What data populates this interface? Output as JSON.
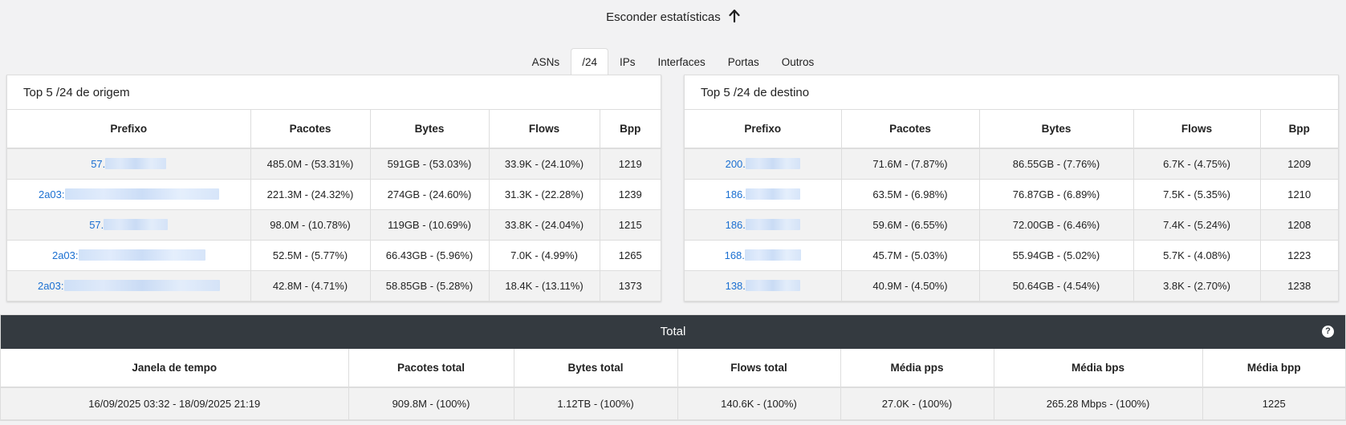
{
  "toggle": {
    "label": "Esconder estatísticas"
  },
  "tabs": [
    {
      "label": "ASNs",
      "active": false
    },
    {
      "label": "/24",
      "active": true
    },
    {
      "label": "IPs",
      "active": false
    },
    {
      "label": "Interfaces",
      "active": false
    },
    {
      "label": "Portas",
      "active": false
    },
    {
      "label": "Outros",
      "active": false
    }
  ],
  "origin": {
    "title": "Top 5 /24 de origem",
    "headers": [
      "Prefixo",
      "Pacotes",
      "Bytes",
      "Flows",
      "Bpp"
    ],
    "rows": [
      {
        "prefix": "57.",
        "pacotes": "485.0M - (53.31%)",
        "bytes": "591GB - (53.03%)",
        "flows": "33.9K - (24.10%)",
        "bpp": "1219"
      },
      {
        "prefix": "2a03:",
        "pacotes": "221.3M - (24.32%)",
        "bytes": "274GB - (24.60%)",
        "flows": "31.3K - (22.28%)",
        "bpp": "1239"
      },
      {
        "prefix": "57.",
        "pacotes": "98.0M - (10.78%)",
        "bytes": "119GB - (10.69%)",
        "flows": "33.8K - (24.04%)",
        "bpp": "1215"
      },
      {
        "prefix": "2a03:",
        "pacotes": "52.5M - (5.77%)",
        "bytes": "66.43GB - (5.96%)",
        "flows": "7.0K - (4.99%)",
        "bpp": "1265"
      },
      {
        "prefix": "2a03:",
        "pacotes": "42.8M - (4.71%)",
        "bytes": "58.85GB - (5.28%)",
        "flows": "18.4K - (13.11%)",
        "bpp": "1373"
      }
    ]
  },
  "destination": {
    "title": "Top 5 /24 de destino",
    "headers": [
      "Prefixo",
      "Pacotes",
      "Bytes",
      "Flows",
      "Bpp"
    ],
    "rows": [
      {
        "prefix": "200.",
        "pacotes": "71.6M - (7.87%)",
        "bytes": "86.55GB - (7.76%)",
        "flows": "6.7K - (4.75%)",
        "bpp": "1209"
      },
      {
        "prefix": "186.",
        "pacotes": "63.5M - (6.98%)",
        "bytes": "76.87GB - (6.89%)",
        "flows": "7.5K - (5.35%)",
        "bpp": "1210"
      },
      {
        "prefix": "186.",
        "pacotes": "59.6M - (6.55%)",
        "bytes": "72.00GB - (6.46%)",
        "flows": "7.4K - (5.24%)",
        "bpp": "1208"
      },
      {
        "prefix": "168.",
        "pacotes": "45.7M - (5.03%)",
        "bytes": "55.94GB - (5.02%)",
        "flows": "5.7K - (4.08%)",
        "bpp": "1223"
      },
      {
        "prefix": "138.",
        "pacotes": "40.9M - (4.50%)",
        "bytes": "50.64GB - (4.54%)",
        "flows": "3.8K - (2.70%)",
        "bpp": "1238"
      }
    ]
  },
  "total": {
    "title": "Total",
    "headers": [
      "Janela de tempo",
      "Pacotes total",
      "Bytes total",
      "Flows total",
      "Média pps",
      "Média bps",
      "Média bpp"
    ],
    "row": [
      "16/09/2025 03:32 - 18/09/2025 21:19",
      "909.8M - (100%)",
      "1.12TB - (100%)",
      "140.6K - (100%)",
      "27.0K - (100%)",
      "265.28 Mbps - (100%)",
      "1225"
    ]
  },
  "icons": {
    "toggle": "arrow-up-icon",
    "help": "question-circle-icon"
  },
  "colors": {
    "link": "#1a6fd1",
    "header_dark": "#343a40"
  }
}
